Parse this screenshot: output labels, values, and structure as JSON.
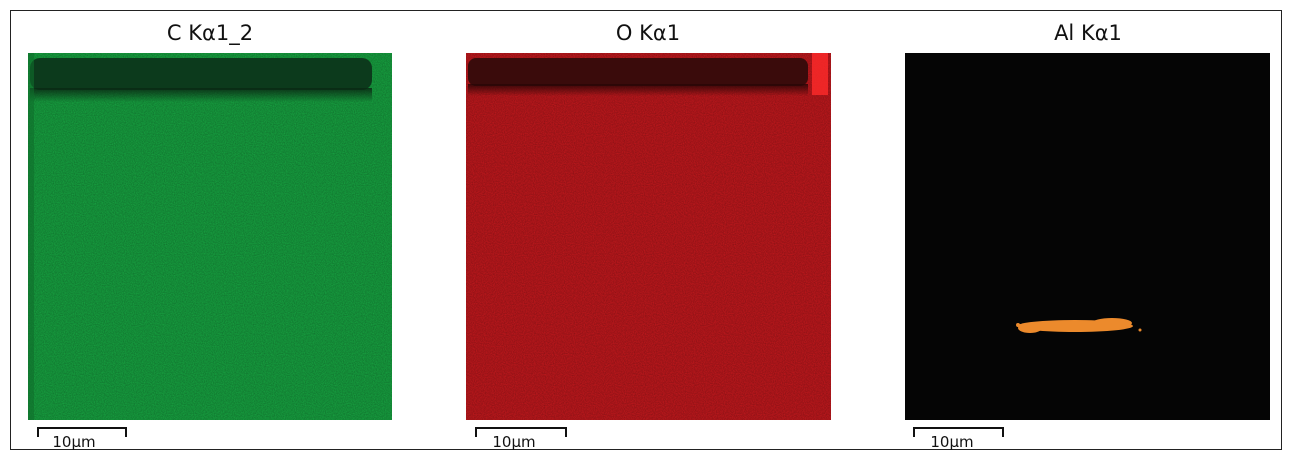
{
  "panels": [
    {
      "title": "C Kα1_2",
      "scale_label": "10µm"
    },
    {
      "title": "O Kα1",
      "scale_label": "10µm"
    },
    {
      "title": "Al Kα1",
      "scale_label": "10µm"
    }
  ]
}
